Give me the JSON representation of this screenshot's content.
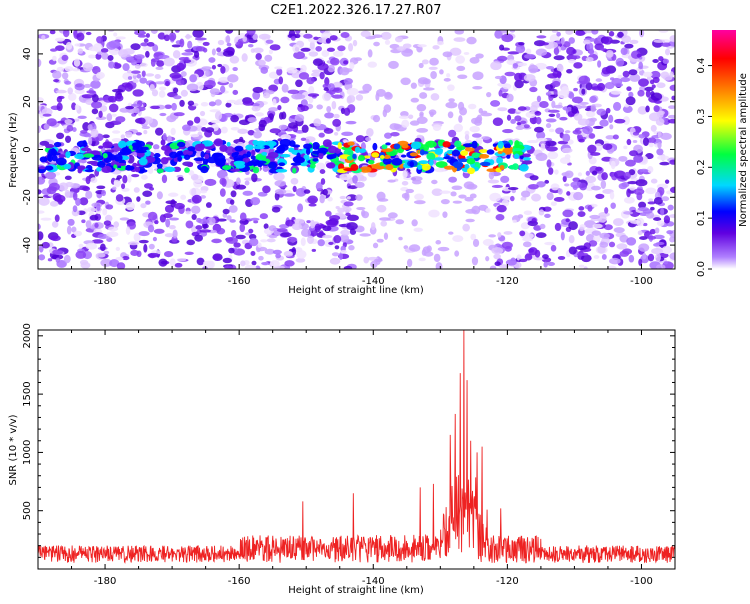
{
  "title": "C2E1.2022.326.17.27.R07",
  "chart_data": [
    {
      "type": "heatmap",
      "xlabel": "Height of straight line (km)",
      "ylabel": "Frequency (Hz)",
      "xlim": [
        -190,
        -95
      ],
      "ylim": [
        -50,
        50
      ],
      "x_ticks": [
        -180,
        -160,
        -140,
        -120,
        -100
      ],
      "y_ticks": [
        -40,
        -20,
        0,
        20,
        40
      ],
      "colorbar": {
        "label": "Normalized spectral amplitude",
        "range": [
          0.0,
          0.47
        ],
        "ticks": [
          "0.0",
          "0.1",
          "0.2",
          "0.3",
          "0.4"
        ],
        "colormap": [
          "#ffffff",
          "#b080ff",
          "#6000e0",
          "#0000ff",
          "#00d8ff",
          "#00ff40",
          "#ffff00",
          "#ff8000",
          "#ff0000",
          "#ff00a0"
        ]
      },
      "grid": false,
      "band_center_hz": -3,
      "band_halfwidth_hz": 6,
      "band_x_range": [
        -190,
        -117
      ],
      "gap_x_ranges": [
        [
          -143,
          -122
        ]
      ]
    },
    {
      "type": "line",
      "xlabel": "Height of straight line (km)",
      "ylabel": "SNR (10 * v/v)",
      "xlim": [
        -190,
        -95
      ],
      "ylim": [
        0,
        2050
      ],
      "x_ticks": [
        -180,
        -160,
        -140,
        -120,
        -100
      ],
      "y_ticks": [
        500,
        1000,
        1500,
        2000
      ],
      "series_color": "#ee2222",
      "grid": false,
      "baseline_snr": 150,
      "noise_amplitude": 150,
      "peaks": [
        {
          "x": -150.5,
          "y": 580
        },
        {
          "x": -143.0,
          "y": 650
        },
        {
          "x": -133.0,
          "y": 700
        },
        {
          "x": -131.0,
          "y": 730
        },
        {
          "x": -128.5,
          "y": 1150
        },
        {
          "x": -127.8,
          "y": 1330
        },
        {
          "x": -127.0,
          "y": 1680
        },
        {
          "x": -126.5,
          "y": 2050
        },
        {
          "x": -126.0,
          "y": 1620
        },
        {
          "x": -125.5,
          "y": 1100
        },
        {
          "x": -124.5,
          "y": 1000
        },
        {
          "x": -123.8,
          "y": 1050
        },
        {
          "x": -121.0,
          "y": 520
        }
      ]
    }
  ]
}
